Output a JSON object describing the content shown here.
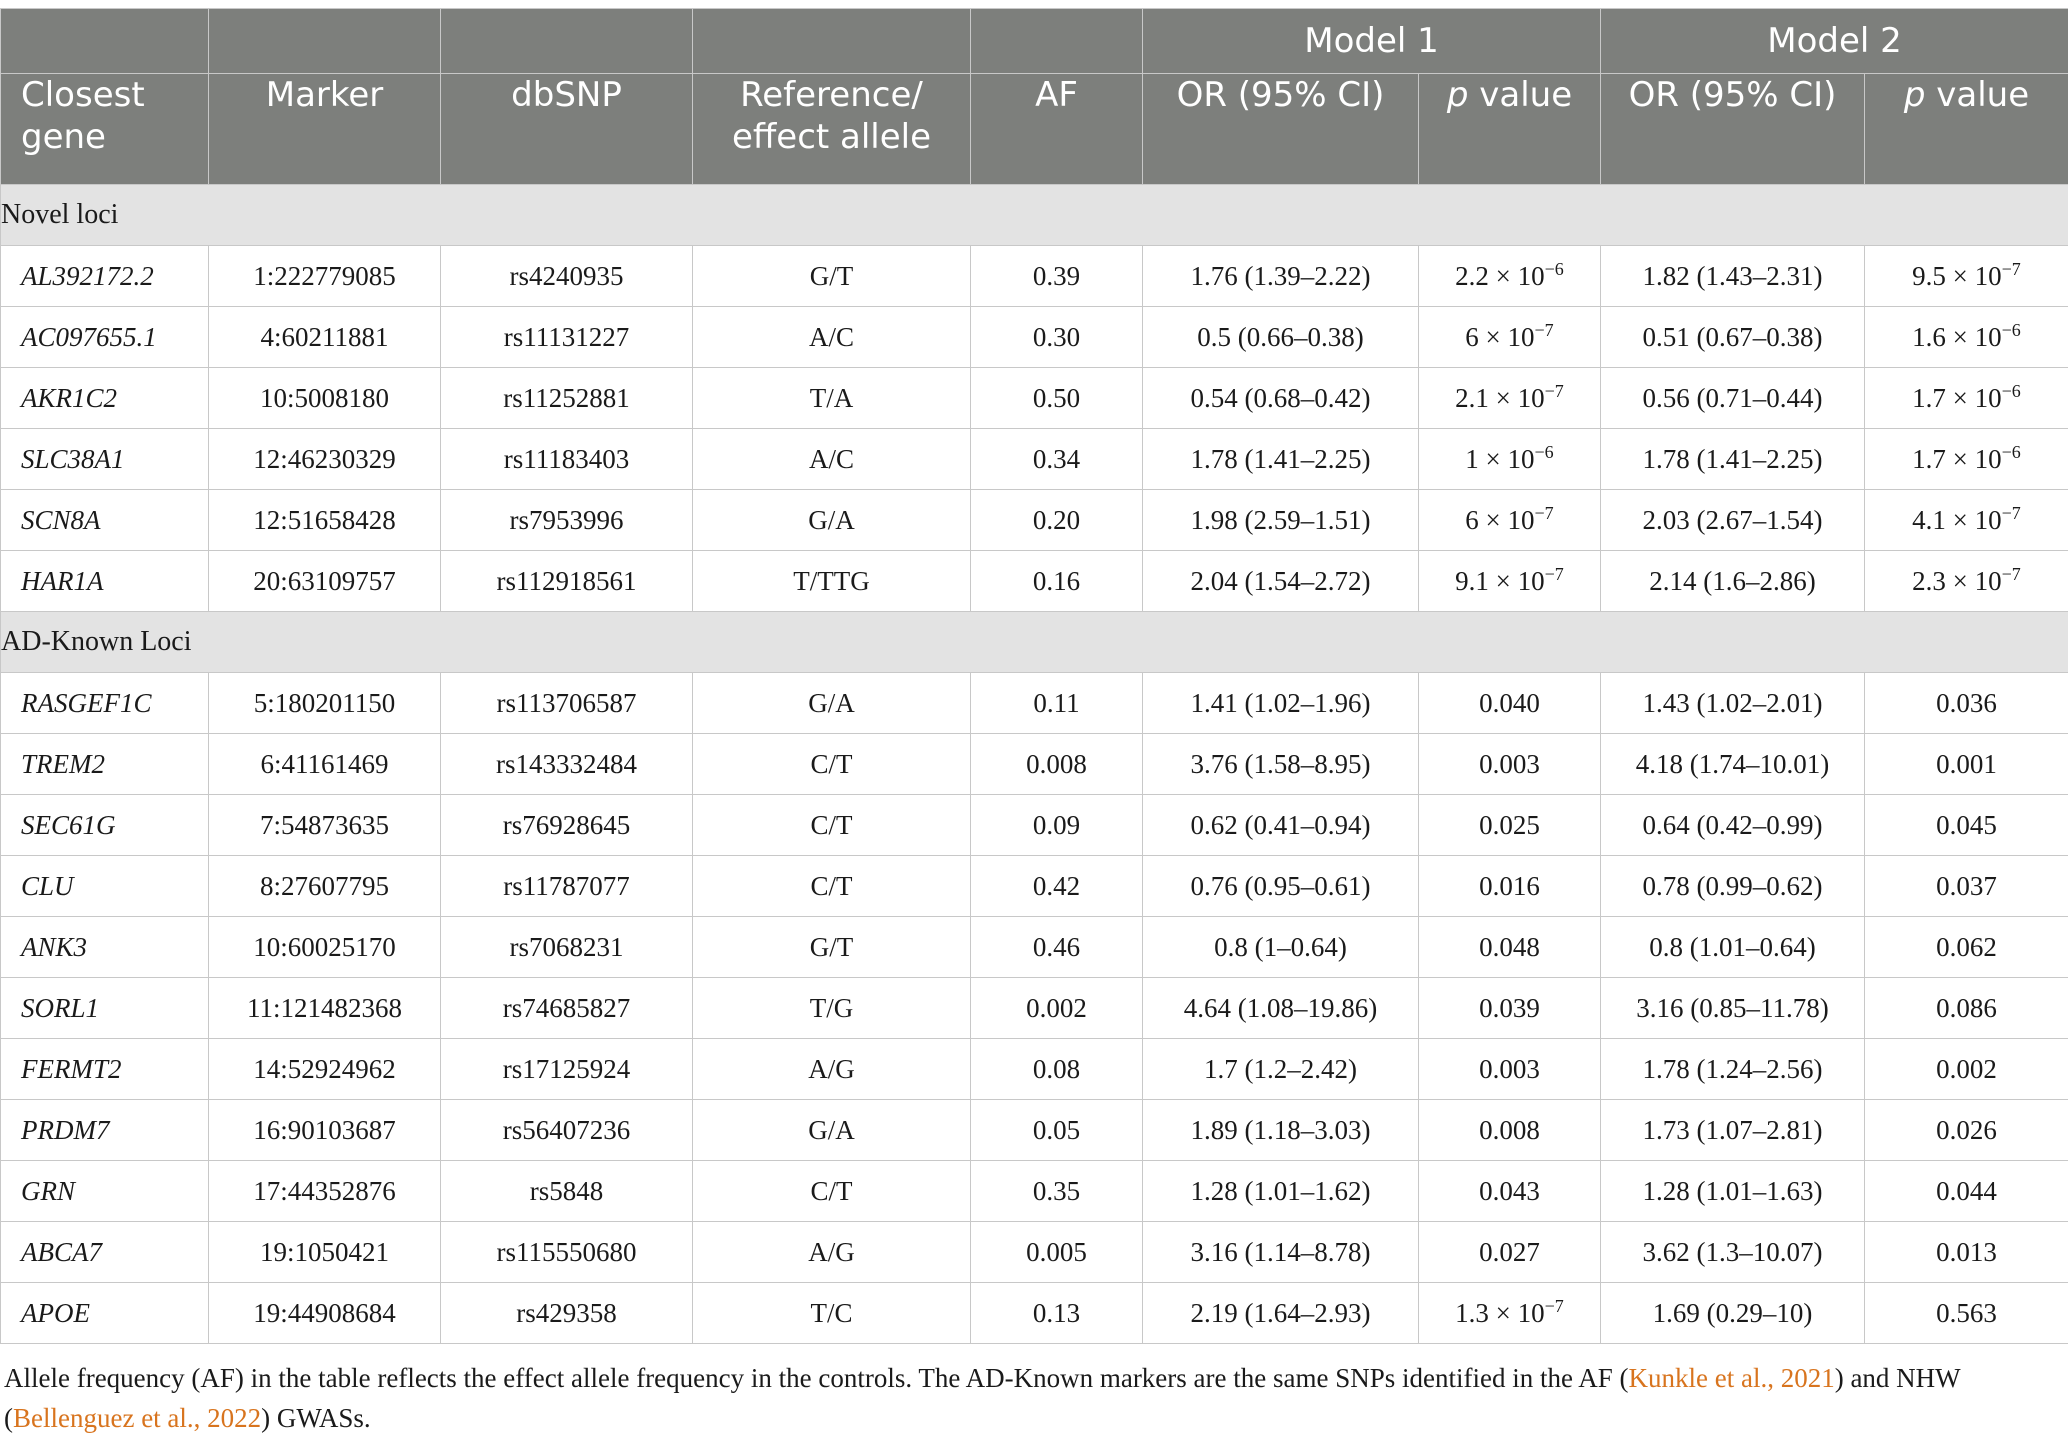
{
  "header": {
    "group1": "Model 1",
    "group2": "Model 2",
    "columns": [
      "Closest gene",
      "Marker",
      "dbSNP",
      "Reference/ effect allele",
      "AF",
      "OR (95% CI)",
      "value",
      "OR (95% CI)",
      "value"
    ],
    "p_symbol": "p"
  },
  "sections": [
    {
      "title": "Novel loci",
      "rows": [
        {
          "gene": "AL392172.2",
          "marker": "1:222779085",
          "dbsnp": "rs4240935",
          "allele": "G/T",
          "af": "0.39",
          "or1": "1.76 (1.39–2.22)",
          "p1": {
            "m": "2.2 × 10",
            "e": "−6"
          },
          "or2": "1.82 (1.43–2.31)",
          "p2": {
            "m": "9.5 × 10",
            "e": "−7"
          }
        },
        {
          "gene": "AC097655.1",
          "marker": "4:60211881",
          "dbsnp": "rs11131227",
          "allele": "A/C",
          "af": "0.30",
          "or1": "0.5 (0.66–0.38)",
          "p1": {
            "m": "6 × 10",
            "e": "−7"
          },
          "or2": "0.51 (0.67–0.38)",
          "p2": {
            "m": "1.6 × 10",
            "e": "−6"
          }
        },
        {
          "gene": "AKR1C2",
          "marker": "10:5008180",
          "dbsnp": "rs11252881",
          "allele": "T/A",
          "af": "0.50",
          "or1": "0.54 (0.68–0.42)",
          "p1": {
            "m": "2.1 × 10",
            "e": "−7"
          },
          "or2": "0.56 (0.71–0.44)",
          "p2": {
            "m": "1.7 × 10",
            "e": "−6"
          }
        },
        {
          "gene": "SLC38A1",
          "marker": "12:46230329",
          "dbsnp": "rs11183403",
          "allele": "A/C",
          "af": "0.34",
          "or1": "1.78 (1.41–2.25)",
          "p1": {
            "m": "1 × 10",
            "e": "−6"
          },
          "or2": "1.78 (1.41–2.25)",
          "p2": {
            "m": "1.7 × 10",
            "e": "−6"
          }
        },
        {
          "gene": "SCN8A",
          "marker": "12:51658428",
          "dbsnp": "rs7953996",
          "allele": "G/A",
          "af": "0.20",
          "or1": "1.98 (2.59–1.51)",
          "p1": {
            "m": "6 × 10",
            "e": "−7"
          },
          "or2": "2.03 (2.67–1.54)",
          "p2": {
            "m": "4.1 × 10",
            "e": "−7"
          }
        },
        {
          "gene": "HAR1A",
          "marker": "20:63109757",
          "dbsnp": "rs112918561",
          "allele": "T/TTG",
          "af": "0.16",
          "or1": "2.04 (1.54–2.72)",
          "p1": {
            "m": "9.1 × 10",
            "e": "−7"
          },
          "or2": "2.14 (1.6–2.86)",
          "p2": {
            "m": "2.3 × 10",
            "e": "−7"
          }
        }
      ]
    },
    {
      "title": "AD-Known Loci",
      "rows": [
        {
          "gene": "RASGEF1C",
          "marker": "5:180201150",
          "dbsnp": "rs113706587",
          "allele": "G/A",
          "af": "0.11",
          "or1": "1.41 (1.02–1.96)",
          "p1": {
            "m": "0.040"
          },
          "or2": "1.43 (1.02–2.01)",
          "p2": {
            "m": "0.036"
          }
        },
        {
          "gene": "TREM2",
          "marker": "6:41161469",
          "dbsnp": "rs143332484",
          "allele": "C/T",
          "af": "0.008",
          "or1": "3.76 (1.58–8.95)",
          "p1": {
            "m": "0.003"
          },
          "or2": "4.18 (1.74–10.01)",
          "p2": {
            "m": "0.001"
          }
        },
        {
          "gene": "SEC61G",
          "marker": "7:54873635",
          "dbsnp": "rs76928645",
          "allele": "C/T",
          "af": "0.09",
          "or1": "0.62 (0.41–0.94)",
          "p1": {
            "m": "0.025"
          },
          "or2": "0.64 (0.42–0.99)",
          "p2": {
            "m": "0.045"
          }
        },
        {
          "gene": "CLU",
          "marker": "8:27607795",
          "dbsnp": "rs11787077",
          "allele": "C/T",
          "af": "0.42",
          "or1": "0.76 (0.95–0.61)",
          "p1": {
            "m": "0.016"
          },
          "or2": "0.78 (0.99–0.62)",
          "p2": {
            "m": "0.037"
          }
        },
        {
          "gene": "ANK3",
          "marker": "10:60025170",
          "dbsnp": "rs7068231",
          "allele": "G/T",
          "af": "0.46",
          "or1": "0.8 (1–0.64)",
          "p1": {
            "m": "0.048"
          },
          "or2": "0.8 (1.01–0.64)",
          "p2": {
            "m": "0.062"
          }
        },
        {
          "gene": "SORL1",
          "marker": "11:121482368",
          "dbsnp": "rs74685827",
          "allele": "T/G",
          "af": "0.002",
          "or1": "4.64 (1.08–19.86)",
          "p1": {
            "m": "0.039"
          },
          "or2": "3.16 (0.85–11.78)",
          "p2": {
            "m": "0.086"
          }
        },
        {
          "gene": "FERMT2",
          "marker": "14:52924962",
          "dbsnp": "rs17125924",
          "allele": "A/G",
          "af": "0.08",
          "or1": "1.7 (1.2–2.42)",
          "p1": {
            "m": "0.003"
          },
          "or2": "1.78 (1.24–2.56)",
          "p2": {
            "m": "0.002"
          }
        },
        {
          "gene": "PRDM7",
          "marker": "16:90103687",
          "dbsnp": "rs56407236",
          "allele": "G/A",
          "af": "0.05",
          "or1": "1.89 (1.18–3.03)",
          "p1": {
            "m": "0.008"
          },
          "or2": "1.73 (1.07–2.81)",
          "p2": {
            "m": "0.026"
          }
        },
        {
          "gene": "GRN",
          "marker": "17:44352876",
          "dbsnp": "rs5848",
          "allele": "C/T",
          "af": "0.35",
          "or1": "1.28 (1.01–1.62)",
          "p1": {
            "m": "0.043"
          },
          "or2": "1.28 (1.01–1.63)",
          "p2": {
            "m": "0.044"
          }
        },
        {
          "gene": "ABCA7",
          "marker": "19:1050421",
          "dbsnp": "rs115550680",
          "allele": "A/G",
          "af": "0.005",
          "or1": "3.16 (1.14–8.78)",
          "p1": {
            "m": "0.027"
          },
          "or2": "3.62 (1.3–10.07)",
          "p2": {
            "m": "0.013"
          }
        },
        {
          "gene": "APOE",
          "marker": "19:44908684",
          "dbsnp": "rs429358",
          "allele": "T/C",
          "af": "0.13",
          "or1": "2.19 (1.64–2.93)",
          "p1": {
            "m": "1.3 × 10",
            "e": "−7"
          },
          "or2": "1.69 (0.29–10)",
          "p2": {
            "m": "0.563"
          }
        }
      ]
    }
  ],
  "footnote": {
    "text1": "Allele frequency (AF) in the table reflects the effect allele frequency in the controls. The AD-Known markers are the same SNPs identified in the AF (",
    "ref1": "Kunkle et al., 2021",
    "text2": ") and NHW (",
    "ref2": "Bellenguez et al., 2022",
    "text3": ") GWASs."
  },
  "colors": {
    "header_bg": "#7d7f7c",
    "section_bg": "#e3e3e3",
    "link": "#d8741e"
  }
}
